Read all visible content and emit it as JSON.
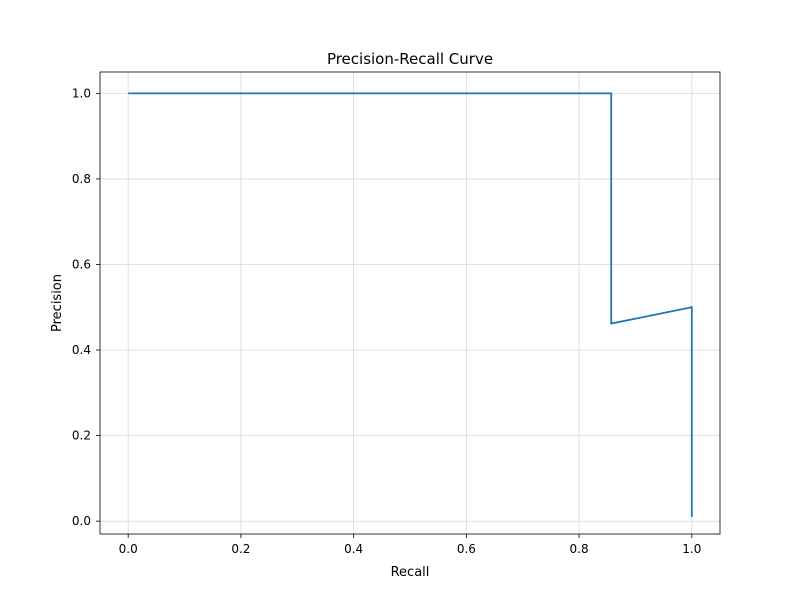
{
  "chart_data": {
    "type": "line",
    "title": "Precision-Recall Curve",
    "xlabel": "Recall",
    "ylabel": "Precision",
    "xlim": [
      -0.05,
      1.05
    ],
    "ylim": [
      -0.03,
      1.05
    ],
    "xticks": [
      0.0,
      0.2,
      0.4,
      0.6,
      0.8,
      1.0
    ],
    "xtick_labels": [
      "0.0",
      "0.2",
      "0.4",
      "0.6",
      "0.8",
      "1.0"
    ],
    "yticks": [
      0.0,
      0.2,
      0.4,
      0.6,
      0.8,
      1.0
    ],
    "ytick_labels": [
      "0.0",
      "0.2",
      "0.4",
      "0.6",
      "0.8",
      "1.0"
    ],
    "grid": true,
    "series": [
      {
        "color": "#1f77b4",
        "x": [
          0.0,
          0.857,
          0.857,
          1.0,
          1.0,
          1.0
        ],
        "y": [
          1.0,
          1.0,
          0.462,
          0.5,
          0.5,
          0.01
        ]
      }
    ]
  }
}
